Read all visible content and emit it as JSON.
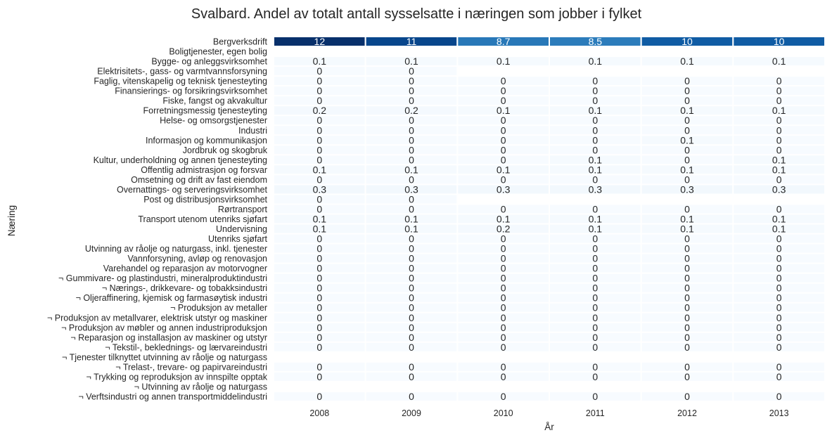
{
  "chart_data": {
    "type": "heatmap",
    "title": "Svalbard. Andel av totalt antall sysselsatte i næringen som jobber i fylket",
    "xlabel": "År",
    "ylabel": "Næring",
    "x": [
      "2008",
      "2009",
      "2010",
      "2011",
      "2012",
      "2013"
    ],
    "rows": [
      {
        "label": "Bergverksdrift",
        "values": [
          "12",
          "11",
          "8.7",
          "8.5",
          "10",
          "10"
        ],
        "fill": [
          12,
          11,
          8.7,
          8.5,
          10,
          10
        ]
      },
      {
        "label": "Boligtjenester, egen bolig",
        "values": [
          null,
          null,
          null,
          null,
          null,
          null
        ],
        "fill": [
          null,
          null,
          null,
          null,
          null,
          null
        ]
      },
      {
        "label": "Bygge- og anleggsvirksomhet",
        "values": [
          "0.1",
          "0.1",
          "0.1",
          "0.1",
          "0.1",
          "0.1"
        ],
        "fill": [
          0.1,
          0.1,
          0.1,
          0.1,
          0.1,
          0.1
        ]
      },
      {
        "label": "Elektrisitets-, gass- og varmtvannsforsyning",
        "values": [
          "0",
          "0",
          null,
          null,
          null,
          null
        ],
        "fill": [
          0,
          0,
          null,
          null,
          null,
          null
        ]
      },
      {
        "label": "Faglig, vitenskapelig og teknisk tjenesteyting",
        "values": [
          "0",
          "0",
          "0",
          "0",
          "0",
          "0"
        ],
        "fill": [
          0,
          0,
          0,
          0,
          0,
          0
        ]
      },
      {
        "label": "Finansierings- og forsikringsvirksomhet",
        "values": [
          "0",
          "0",
          "0",
          "0",
          "0",
          "0"
        ],
        "fill": [
          0,
          0,
          0,
          0,
          0,
          0
        ]
      },
      {
        "label": "Fiske, fangst og akvakultur",
        "values": [
          "0",
          "0",
          "0",
          "0",
          "0",
          "0"
        ],
        "fill": [
          0,
          0,
          0,
          0,
          0,
          0
        ]
      },
      {
        "label": "Forretningsmessig tjenesteyting",
        "values": [
          "0.2",
          "0.2",
          "0.1",
          "0.1",
          "0.1",
          "0.1"
        ],
        "fill": [
          0.2,
          0.2,
          0.1,
          0.1,
          0.1,
          0.1
        ]
      },
      {
        "label": "Helse- og omsorgstjenester",
        "values": [
          "0",
          "0",
          "0",
          "0",
          "0",
          "0"
        ],
        "fill": [
          0,
          0,
          0,
          0,
          0,
          0
        ]
      },
      {
        "label": "Industri",
        "values": [
          "0",
          "0",
          "0",
          "0",
          "0",
          "0"
        ],
        "fill": [
          0,
          0,
          0,
          0,
          0,
          0
        ]
      },
      {
        "label": "Informasjon og kommunikasjon",
        "values": [
          "0",
          "0",
          "0",
          "0",
          "0.1",
          "0"
        ],
        "fill": [
          0,
          0,
          0,
          0,
          0.1,
          0
        ]
      },
      {
        "label": "Jordbruk og skogbruk",
        "values": [
          "0",
          "0",
          "0",
          "0",
          "0",
          "0"
        ],
        "fill": [
          0,
          0,
          0,
          0,
          0,
          0
        ]
      },
      {
        "label": "Kultur, underholdning og annen tjenesteyting",
        "values": [
          "0",
          "0",
          "0",
          "0.1",
          "0",
          "0.1"
        ],
        "fill": [
          0,
          0,
          0,
          0.1,
          0,
          0.1
        ]
      },
      {
        "label": "Offentlig admistrasjon og forsvar",
        "values": [
          "0.1",
          "0.1",
          "0.1",
          "0.1",
          "0.1",
          "0.1"
        ],
        "fill": [
          0.1,
          0.1,
          0.1,
          0.1,
          0.1,
          0.1
        ]
      },
      {
        "label": "Omsetning og drift av fast eiendom",
        "values": [
          "0",
          "0",
          "0",
          "0",
          "0",
          "0"
        ],
        "fill": [
          0,
          0,
          0,
          0,
          0,
          0
        ]
      },
      {
        "label": "Overnattings- og serveringsvirksomhet",
        "values": [
          "0.3",
          "0.3",
          "0.3",
          "0.3",
          "0.3",
          "0.3"
        ],
        "fill": [
          0.3,
          0.3,
          0.3,
          0.3,
          0.3,
          0.3
        ]
      },
      {
        "label": "Post og distribusjonsvirksomhet",
        "values": [
          "0",
          "0",
          null,
          null,
          null,
          null
        ],
        "fill": [
          0,
          0,
          null,
          null,
          null,
          null
        ]
      },
      {
        "label": "Rørtransport",
        "values": [
          "0",
          "0",
          "0",
          "0",
          "0",
          "0"
        ],
        "fill": [
          0,
          0,
          0,
          0,
          0,
          0
        ]
      },
      {
        "label": "Transport utenom utenriks sjøfart",
        "values": [
          "0.1",
          "0.1",
          "0.1",
          "0.1",
          "0.1",
          "0.1"
        ],
        "fill": [
          0.1,
          0.1,
          0.1,
          0.1,
          0.1,
          0.1
        ]
      },
      {
        "label": "Undervisning",
        "values": [
          "0.1",
          "0.1",
          "0.2",
          "0.1",
          "0.1",
          "0.1"
        ],
        "fill": [
          0.1,
          0.1,
          0.2,
          0.1,
          0.1,
          0.1
        ]
      },
      {
        "label": "Utenriks sjøfart",
        "values": [
          "0",
          "0",
          "0",
          "0",
          "0",
          "0"
        ],
        "fill": [
          0,
          0,
          0,
          0,
          0,
          0
        ]
      },
      {
        "label": "Utvinning av råolje og naturgass, inkl. tjenester",
        "values": [
          "0",
          "0",
          "0",
          "0",
          "0",
          "0"
        ],
        "fill": [
          0,
          0,
          0,
          0,
          0,
          0
        ]
      },
      {
        "label": "Vannforsyning, avløp og renovasjon",
        "values": [
          "0",
          "0",
          "0",
          "0",
          "0",
          "0"
        ],
        "fill": [
          0,
          0,
          0,
          0,
          0,
          0
        ]
      },
      {
        "label": "Varehandel og reparasjon av motorvogner",
        "values": [
          "0",
          "0",
          "0",
          "0",
          "0",
          "0"
        ],
        "fill": [
          0,
          0,
          0,
          0,
          0,
          0
        ]
      },
      {
        "label": "¬ Gummivare- og plastindustri, mineralproduktindustri",
        "values": [
          "0",
          "0",
          "0",
          "0",
          "0",
          "0"
        ],
        "fill": [
          0,
          0,
          0,
          0,
          0,
          0
        ]
      },
      {
        "label": "¬ Nærings-, drikkevare- og tobakksindustri",
        "values": [
          "0",
          "0",
          "0",
          "0",
          "0",
          "0"
        ],
        "fill": [
          0,
          0,
          0,
          0,
          0,
          0
        ]
      },
      {
        "label": "¬ Oljeraffinering, kjemisk og farmasøytisk industri",
        "values": [
          "0",
          "0",
          "0",
          "0",
          "0",
          "0"
        ],
        "fill": [
          0,
          0,
          0,
          0,
          0,
          0
        ]
      },
      {
        "label": "¬ Produksjon av metaller",
        "values": [
          "0",
          "0",
          "0",
          "0",
          "0",
          "0"
        ],
        "fill": [
          0,
          0,
          0,
          0,
          0,
          0
        ]
      },
      {
        "label": "¬ Produksjon av metallvarer, elektrisk utstyr og maskiner",
        "values": [
          "0",
          "0",
          "0",
          "0",
          "0",
          "0"
        ],
        "fill": [
          0,
          0,
          0,
          0,
          0,
          0
        ]
      },
      {
        "label": "¬ Produksjon av møbler og annen industriproduksjon",
        "values": [
          "0",
          "0",
          "0",
          "0",
          "0",
          "0"
        ],
        "fill": [
          0,
          0,
          0,
          0,
          0,
          0
        ]
      },
      {
        "label": "¬ Reparasjon og installasjon av maskiner og utstyr",
        "values": [
          "0",
          "0",
          "0",
          "0",
          "0",
          "0"
        ],
        "fill": [
          0,
          0,
          0,
          0,
          0,
          0
        ]
      },
      {
        "label": "¬ Tekstil-, beklednings- og lærvareindustri",
        "values": [
          "0",
          "0",
          "0",
          "0",
          "0",
          "0"
        ],
        "fill": [
          0,
          0,
          0,
          0,
          0,
          0
        ]
      },
      {
        "label": "¬ Tjenester tilknyttet utvinning av råolje og naturgass",
        "values": [
          null,
          null,
          null,
          null,
          null,
          null
        ],
        "fill": [
          null,
          null,
          null,
          null,
          null,
          null
        ]
      },
      {
        "label": "¬ Trelast-, trevare- og papirvareindustri",
        "values": [
          "0",
          "0",
          "0",
          "0",
          "0",
          "0"
        ],
        "fill": [
          0,
          0,
          0,
          0,
          0,
          0
        ]
      },
      {
        "label": "¬ Trykking og reproduksjon av innspilte opptak",
        "values": [
          "0",
          "0",
          "0",
          "0",
          "0",
          "0"
        ],
        "fill": [
          0,
          0,
          0,
          0,
          0,
          0
        ]
      },
      {
        "label": "¬ Utvinning av råolje og naturgass",
        "values": [
          null,
          null,
          null,
          null,
          null,
          null
        ],
        "fill": [
          null,
          null,
          null,
          null,
          null,
          null
        ]
      },
      {
        "label": "¬ Verftsindustri og annen transportmiddelindustri",
        "values": [
          "0",
          "0",
          "0",
          "0",
          "0",
          "0"
        ],
        "fill": [
          0,
          0,
          0,
          0,
          0,
          0
        ]
      }
    ],
    "colormap": {
      "name": "Blues",
      "range": [
        0,
        12
      ],
      "low": "#f7fbff",
      "high": "#08306b"
    },
    "grid": false,
    "legend": "none"
  }
}
